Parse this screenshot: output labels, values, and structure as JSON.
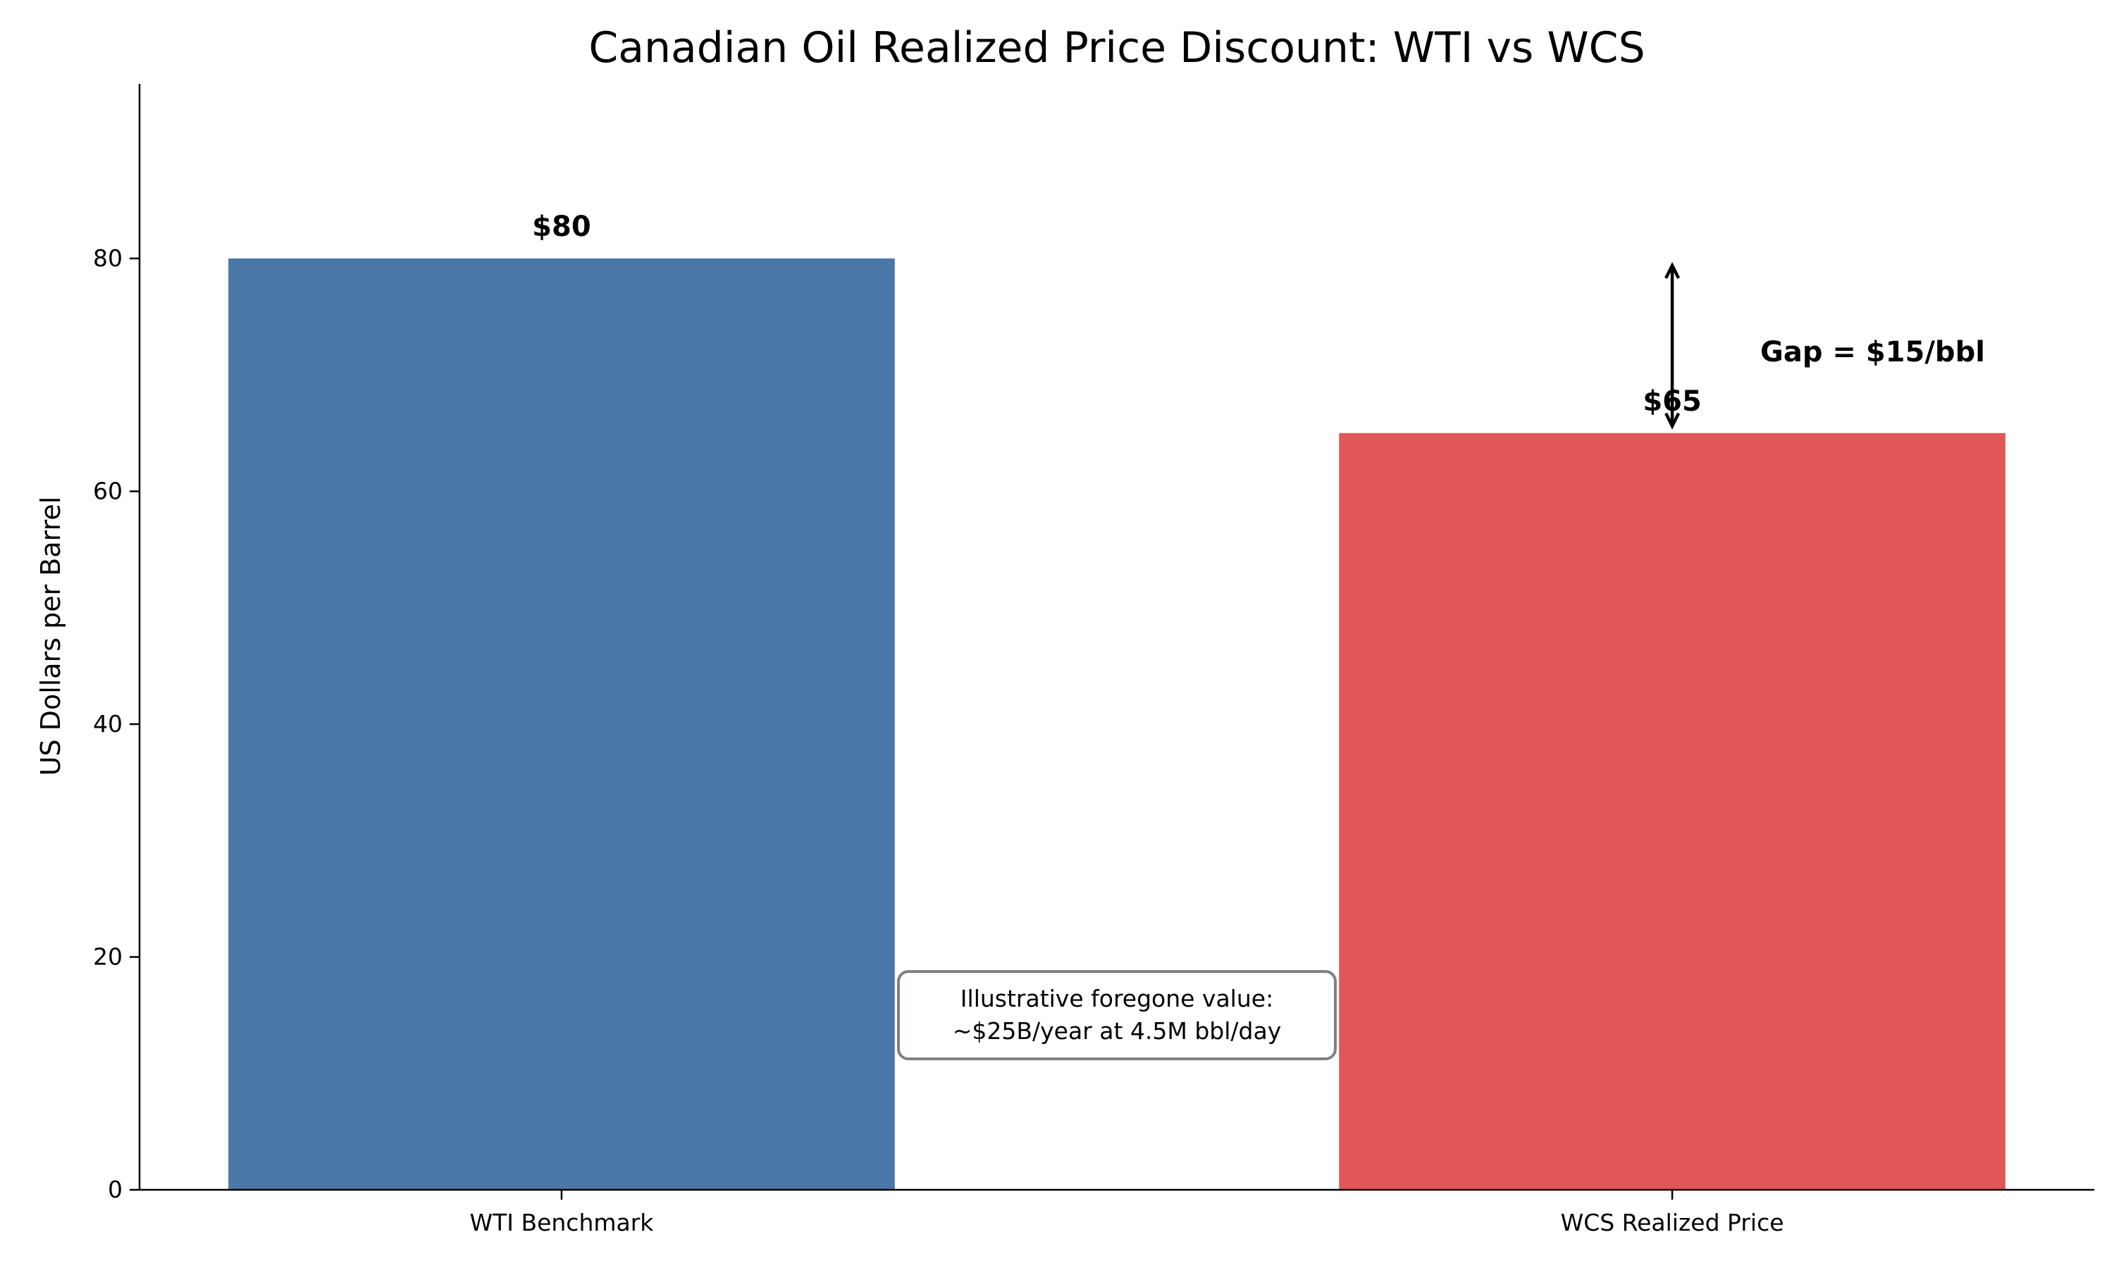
{
  "chart_data": {
    "type": "bar",
    "title": "Canadian Oil Realized Price Discount: WTI vs WCS",
    "xlabel": "",
    "ylabel": "US Dollars per Barrel",
    "categories": [
      "WTI Benchmark",
      "WCS Realized Price"
    ],
    "values": [
      80,
      65
    ],
    "value_labels": [
      "$80",
      "$65"
    ],
    "colors": [
      "#4c78a8",
      "#e15759"
    ],
    "ylim": [
      0,
      95
    ],
    "yticks": [
      0,
      20,
      40,
      60,
      80
    ],
    "grid": false,
    "annotations": {
      "gap_arrow": {
        "from": 80,
        "to": 65,
        "category": "WCS Realized Price"
      },
      "gap_label": "Gap = $15/bbl",
      "note_lines": [
        "Illustrative foregone value:",
        "~$25B/year at 4.5M bbl/day"
      ]
    }
  }
}
